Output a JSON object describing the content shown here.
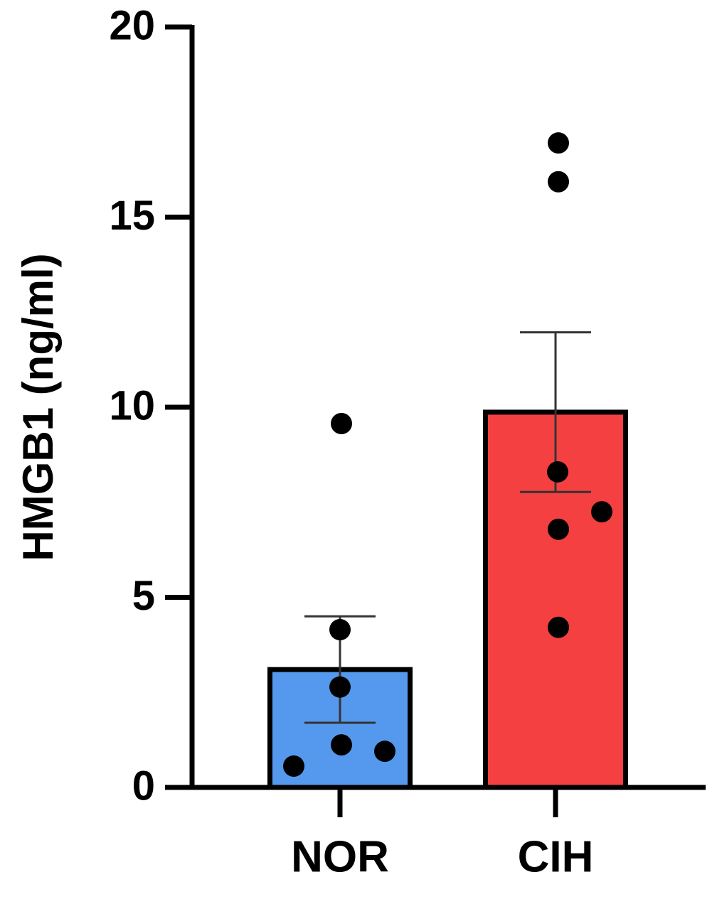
{
  "chart_data": {
    "type": "bar",
    "ylabel": "HMGB1 (ng/ml)",
    "categories": [
      "NOR",
      "CIH"
    ],
    "values": [
      3.1,
      9.87
    ],
    "errors": [
      1.4,
      2.1
    ],
    "colors": [
      "#5599ee",
      "#f44040"
    ],
    "points": [
      [
        0.56,
        1.12,
        0.95,
        2.64,
        4.15,
        9.57
      ],
      [
        16.95,
        15.93,
        8.3,
        7.25,
        6.79,
        4.21
      ]
    ],
    "ylim": [
      0,
      20
    ],
    "yticks": [
      0,
      5,
      10,
      15,
      20
    ],
    "grid": false
  }
}
